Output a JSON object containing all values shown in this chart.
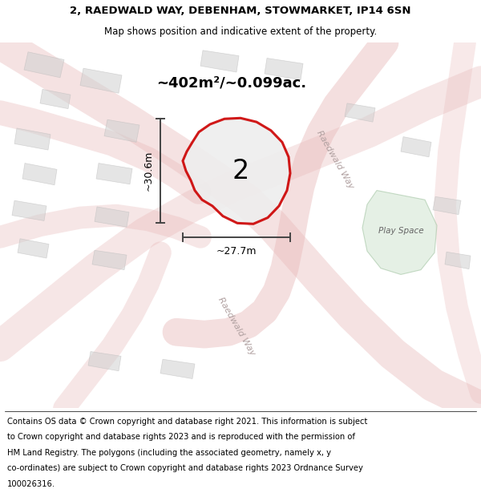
{
  "title_line1": "2, RAEDWALD WAY, DEBENHAM, STOWMARKET, IP14 6SN",
  "title_line2": "Map shows position and indicative extent of the property.",
  "area_text": "~402m²/~0.099ac.",
  "width_label": "~27.7m",
  "height_label": "~30.6m",
  "number_label": "2",
  "play_space_label": "Play Space",
  "raedwald_way_label1": "Raedwald Way",
  "raedwald_way_label2": "Raedwald Way",
  "footer_lines": [
    "Contains OS data © Crown copyright and database right 2021. This information is subject",
    "to Crown copyright and database rights 2023 and is reproduced with the permission of",
    "HM Land Registry. The polygons (including the associated geometry, namely x, y",
    "co-ordinates) are subject to Crown copyright and database rights 2023 Ordnance Survey",
    "100026316."
  ],
  "map_bg": "#f2eeee",
  "plot_outline_color": "#cc0000",
  "plot_fill_color": "#eeeeee",
  "road_color": "#e8b8b8",
  "building_color": "#d0d0d0",
  "play_space_color": "#d8e8d8",
  "dim_line_color": "#444444",
  "title_fontsize": 9.5,
  "subtitle_fontsize": 8.5,
  "area_fontsize": 13,
  "footer_fontsize": 7.2
}
